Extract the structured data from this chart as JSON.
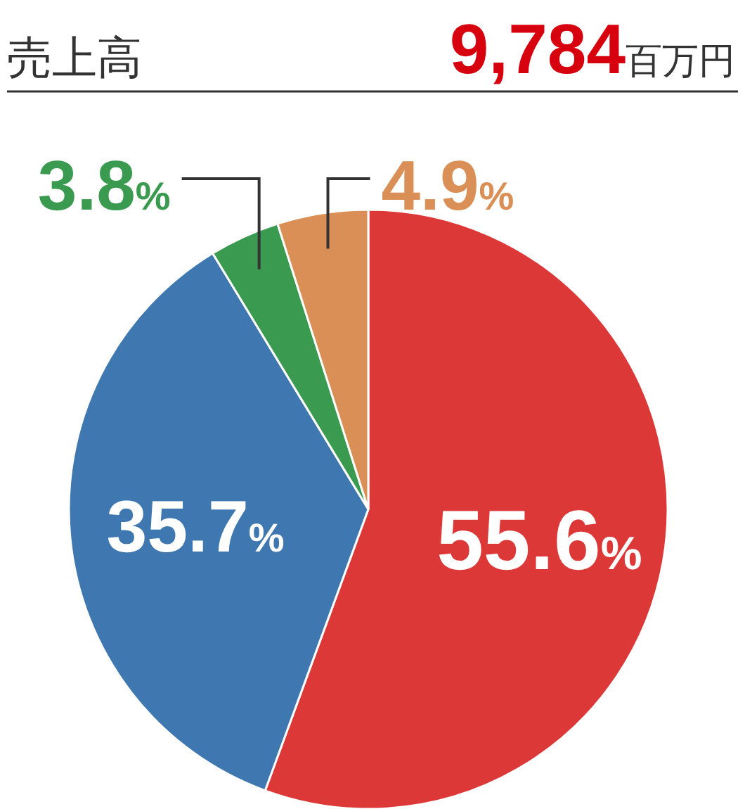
{
  "chart_data": {
    "type": "pie",
    "title": "売上高",
    "subtitle": "9,784百万円",
    "categories": [
      null,
      null,
      null,
      null
    ],
    "values": [
      55.6,
      35.7,
      3.8,
      4.9
    ],
    "value_labels": [
      "55.6%",
      "35.7%",
      "3.8%",
      "4.9%"
    ],
    "colors": [
      "#dc3838",
      "#3f78b0",
      "#3a9a50",
      "#d98f55"
    ]
  }
}
